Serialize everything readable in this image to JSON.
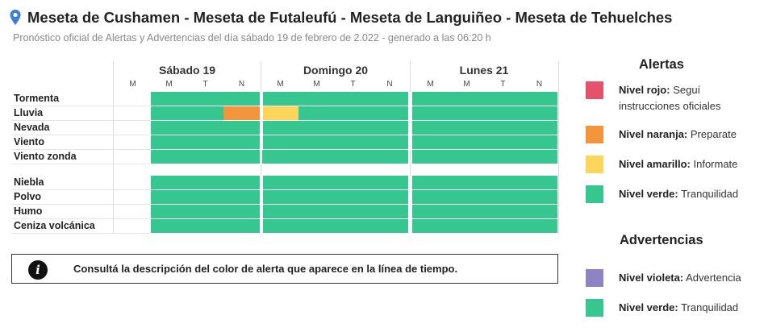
{
  "header": {
    "title": "Meseta de Cushamen - Meseta de Futaleufú - Meseta de Languiñeo - Meseta de Tehuelches",
    "subtitle": "Pronóstico oficial de Alertas y Advertencias del día sábado 19 de febrero de 2.022 - generado a las 06:20 h"
  },
  "colors": {
    "verde": "#36c790",
    "naranja": "#f2953c",
    "amarillo": "#fdd55a",
    "rojo": "#e4526b",
    "violeta": "#8d84c4"
  },
  "timeline": {
    "days": [
      {
        "label": "Sábado 19",
        "shifts": [
          "M",
          "M",
          "T",
          "N"
        ]
      },
      {
        "label": "Domingo 20",
        "shifts": [
          "M",
          "M",
          "T",
          "N"
        ]
      },
      {
        "label": "Lunes 21",
        "shifts": [
          "M",
          "M",
          "T",
          "N"
        ]
      }
    ],
    "rows": [
      {
        "label": "Tormenta",
        "levels": [
          "none",
          "verde",
          "verde",
          "verde",
          "verde",
          "verde",
          "verde",
          "verde",
          "verde",
          "verde",
          "verde",
          "verde"
        ]
      },
      {
        "label": "Lluvia",
        "levels": [
          "none",
          "verde",
          "verde",
          "naranja",
          "amarillo",
          "verde",
          "verde",
          "verde",
          "verde",
          "verde",
          "verde",
          "verde"
        ]
      },
      {
        "label": "Nevada",
        "levels": [
          "none",
          "verde",
          "verde",
          "verde",
          "verde",
          "verde",
          "verde",
          "verde",
          "verde",
          "verde",
          "verde",
          "verde"
        ]
      },
      {
        "label": "Viento",
        "levels": [
          "none",
          "verde",
          "verde",
          "verde",
          "verde",
          "verde",
          "verde",
          "verde",
          "verde",
          "verde",
          "verde",
          "verde"
        ]
      },
      {
        "label": "Viento zonda",
        "levels": [
          "none",
          "verde",
          "verde",
          "verde",
          "verde",
          "verde",
          "verde",
          "verde",
          "verde",
          "verde",
          "verde",
          "verde"
        ]
      },
      {
        "label": "Niebla",
        "levels": [
          "none",
          "verde",
          "verde",
          "verde",
          "verde",
          "verde",
          "verde",
          "verde",
          "verde",
          "verde",
          "verde",
          "verde"
        ]
      },
      {
        "label": "Polvo",
        "levels": [
          "none",
          "verde",
          "verde",
          "verde",
          "verde",
          "verde",
          "verde",
          "verde",
          "verde",
          "verde",
          "verde",
          "verde"
        ]
      },
      {
        "label": "Humo",
        "levels": [
          "none",
          "verde",
          "verde",
          "verde",
          "verde",
          "verde",
          "verde",
          "verde",
          "verde",
          "verde",
          "verde",
          "verde"
        ]
      },
      {
        "label": "Ceniza volcánica",
        "levels": [
          "none",
          "verde",
          "verde",
          "verde",
          "verde",
          "verde",
          "verde",
          "verde",
          "verde",
          "verde",
          "verde",
          "verde"
        ]
      }
    ]
  },
  "info": {
    "icon": "info-icon",
    "text": "Consultá la descripción del color de alerta que aparece en la línea de tiempo."
  },
  "legend": {
    "alertas_title": "Alertas",
    "alertas": [
      {
        "level": "Nivel rojo:",
        "desc": "Seguí instrucciones oficiales",
        "color": "rojo"
      },
      {
        "level": "Nivel naranja:",
        "desc": "Preparate",
        "color": "naranja"
      },
      {
        "level": "Nivel amarillo:",
        "desc": "Informate",
        "color": "amarillo"
      },
      {
        "level": "Nivel verde:",
        "desc": "Tranquilidad",
        "color": "verde"
      }
    ],
    "advertencias_title": "Advertencias",
    "advertencias": [
      {
        "level": "Nivel violeta:",
        "desc": "Advertencia",
        "color": "violeta"
      },
      {
        "level": "Nivel verde:",
        "desc": "Tranquilidad",
        "color": "verde"
      }
    ]
  }
}
